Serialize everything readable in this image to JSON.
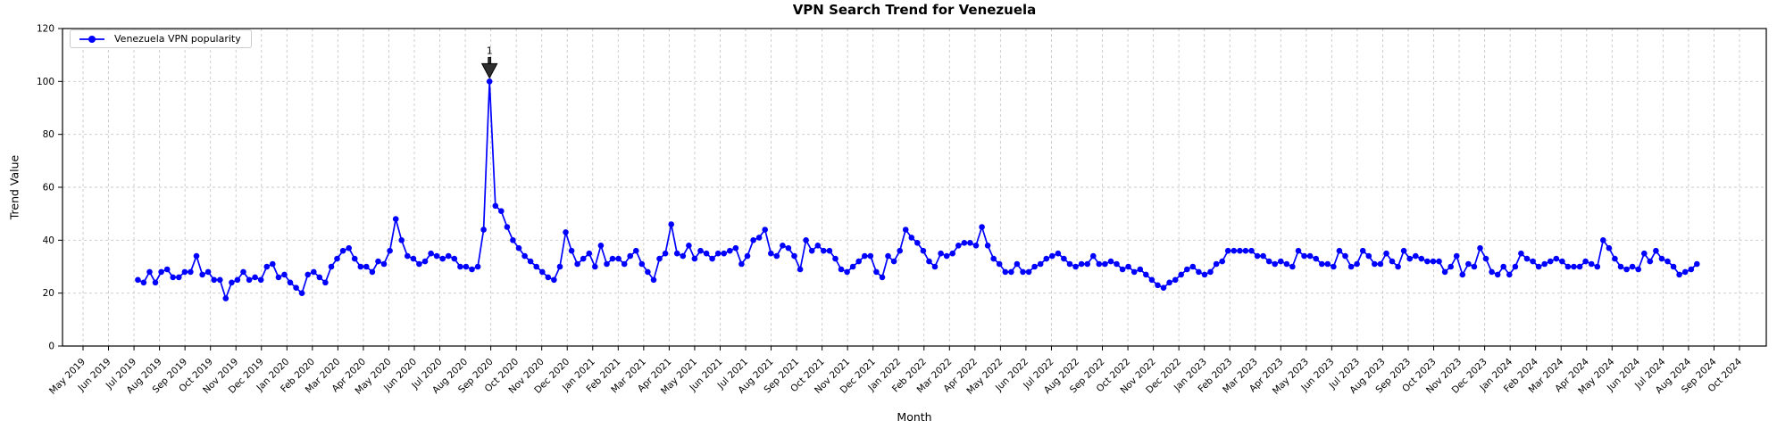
{
  "title": "VPN Search Trend for Venezuela",
  "legend": {
    "label": "Venezuela VPN popularity"
  },
  "annotation": {
    "text": "1"
  },
  "colors": {
    "line": "#0000ff",
    "marker": "#0000ff",
    "grid": "#c8c8c8",
    "axis": "#000000",
    "arrow": "#2e2e2e",
    "legend_border": "#cccccc"
  },
  "chart_data": {
    "type": "line",
    "title": "VPN Search Trend for Venezuela",
    "xlabel": "Month",
    "ylabel": "Trend Value",
    "ylim": [
      0,
      120
    ],
    "yticks": [
      0,
      20,
      40,
      60,
      80,
      100,
      120
    ],
    "grid": true,
    "legend_position": "upper left",
    "x_tick_labels": [
      "May 2019",
      "Jun 2019",
      "Jul 2019",
      "Aug 2019",
      "Sep 2019",
      "Oct 2019",
      "Nov 2019",
      "Dec 2019",
      "Jan 2020",
      "Feb 2020",
      "Mar 2020",
      "Apr 2020",
      "May 2020",
      "Jun 2020",
      "Jul 2020",
      "Aug 2020",
      "Sep 2020",
      "Oct 2020",
      "Nov 2020",
      "Dec 2020",
      "Jan 2021",
      "Feb 2021",
      "Mar 2021",
      "Apr 2021",
      "May 2021",
      "Jun 2021",
      "Jul 2021",
      "Aug 2021",
      "Sep 2021",
      "Oct 2021",
      "Nov 2021",
      "Dec 2021",
      "Jan 2022",
      "Feb 2022",
      "Mar 2022",
      "Apr 2022",
      "May 2022",
      "Jun 2022",
      "Jul 2022",
      "Aug 2022",
      "Sep 2022",
      "Oct 2022",
      "Nov 2022",
      "Dec 2022",
      "Jan 2023",
      "Feb 2023",
      "Mar 2023",
      "Apr 2023",
      "May 2023",
      "Jun 2023",
      "Jul 2023",
      "Aug 2023",
      "Sep 2023",
      "Oct 2023",
      "Nov 2023",
      "Dec 2023",
      "Jan 2024",
      "Feb 2024",
      "Mar 2024",
      "Apr 2024",
      "May 2024",
      "Jun 2024",
      "Jul 2024",
      "Aug 2024",
      "Sep 2024",
      "Oct 2024"
    ],
    "x_start_month_index": 2.15,
    "x_step_months": 0.23,
    "annotation": {
      "text": "1",
      "target": "max",
      "peak_value": 100,
      "peak_month": "Sep 2020"
    },
    "series": [
      {
        "name": "Venezuela VPN popularity",
        "cadence": "weekly",
        "first_point": "mid Jul 2019",
        "last_point": "early Aug 2024",
        "values": [
          25,
          24,
          28,
          24,
          28,
          29,
          26,
          26,
          28,
          28,
          34,
          27,
          28,
          25,
          25,
          18,
          24,
          25,
          28,
          25,
          26,
          25,
          30,
          31,
          26,
          27,
          24,
          22,
          20,
          27,
          28,
          26,
          24,
          30,
          33,
          36,
          37,
          33,
          30,
          30,
          28,
          32,
          31,
          36,
          48,
          40,
          34,
          33,
          31,
          32,
          35,
          34,
          33,
          34,
          33,
          30,
          30,
          29,
          30,
          44,
          100,
          53,
          51,
          45,
          40,
          37,
          34,
          32,
          30,
          28,
          26,
          25,
          30,
          43,
          36,
          31,
          33,
          35,
          30,
          38,
          31,
          33,
          33,
          31,
          34,
          36,
          31,
          28,
          25,
          33,
          35,
          46,
          35,
          34,
          38,
          33,
          36,
          35,
          33,
          35,
          35,
          36,
          37,
          31,
          34,
          40,
          41,
          44,
          35,
          34,
          38,
          37,
          34,
          29,
          40,
          36,
          38,
          36,
          36,
          33,
          29,
          28,
          30,
          32,
          34,
          34,
          28,
          26,
          34,
          32,
          36,
          44,
          41,
          39,
          36,
          32,
          30,
          35,
          34,
          35,
          38,
          39,
          39,
          38,
          45,
          38,
          33,
          31,
          28,
          28,
          31,
          28,
          28,
          30,
          31,
          33,
          34,
          35,
          33,
          31,
          30,
          31,
          31,
          34,
          31,
          31,
          32,
          31,
          29,
          30,
          28,
          29,
          27,
          25,
          23,
          22,
          24,
          25,
          27,
          29,
          30,
          28,
          27,
          28,
          31,
          32,
          36,
          36,
          36,
          36,
          36,
          34,
          34,
          32,
          31,
          32,
          31,
          30,
          36,
          34,
          34,
          33,
          31,
          31,
          30,
          36,
          34,
          30,
          31,
          36,
          34,
          31,
          31,
          35,
          32,
          30,
          36,
          33,
          34,
          33,
          32,
          32,
          32,
          28,
          30,
          34,
          27,
          31,
          30,
          37,
          33,
          28,
          27,
          30,
          27,
          30,
          35,
          33,
          32,
          30,
          31,
          32,
          33,
          32,
          30,
          30,
          30,
          32,
          31,
          30,
          40,
          37,
          33,
          30,
          29,
          30,
          29,
          35,
          32,
          36,
          33,
          32,
          30,
          27,
          28,
          29,
          31
        ]
      }
    ]
  }
}
